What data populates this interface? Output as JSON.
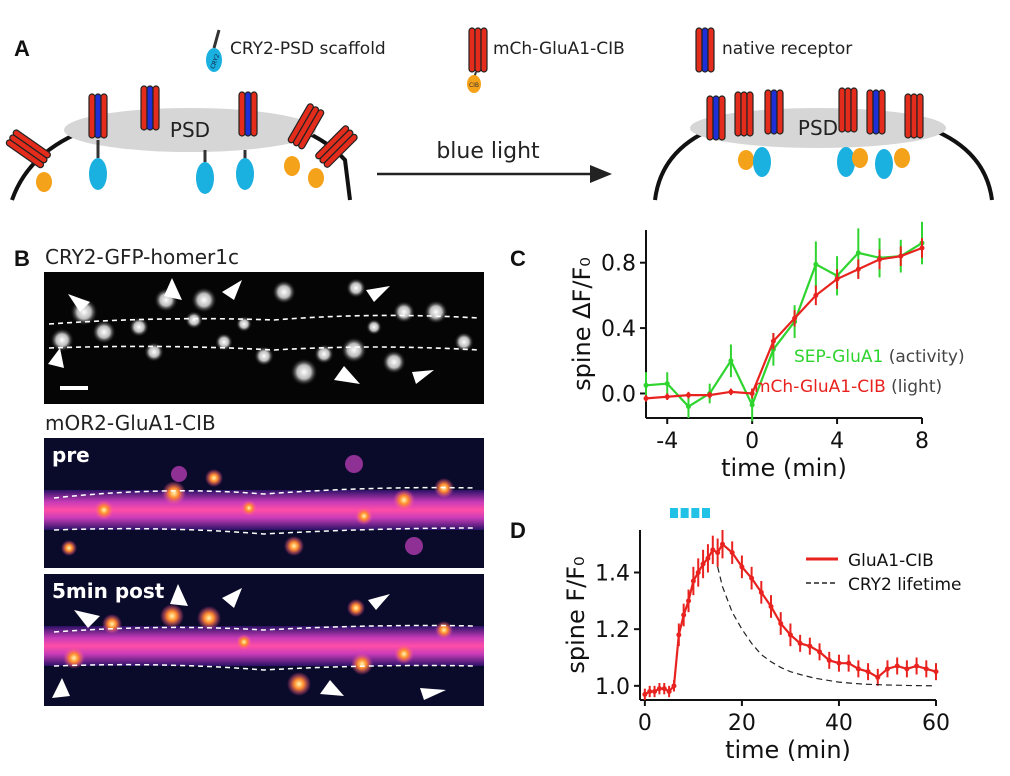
{
  "panels": {
    "A": {
      "letter": "A",
      "legend": {
        "scaffold": "CRY2-PSD scaffold",
        "mch": "mCh-GluA1-CIB",
        "native": "native receptor"
      },
      "psd_label": "PSD",
      "cry2_tag": "CRY2",
      "cib_tag": "CIB",
      "arrow_label": "blue light"
    },
    "B": {
      "letter": "B",
      "title_top": "CRY2-GFP-homer1c",
      "title_mid": "mOR2-GluA1-CIB",
      "pre_label": "pre",
      "post_label": "5min post"
    },
    "C": {
      "letter": "C"
    },
    "D": {
      "letter": "D"
    }
  },
  "colors": {
    "red": "#e8231f",
    "green": "#2fd42f",
    "blue_light": "#21c2e6",
    "receptor_red": "#e32c1b",
    "receptor_blue": "#1f2fd8",
    "cib_orange": "#f5a21b",
    "cry2_cyan": "#1ab0e0"
  },
  "chart_data": [
    {
      "id": "C",
      "type": "line",
      "xlabel": "time (min)",
      "ylabel": "spine ΔF/F₀",
      "xlim": [
        -5,
        8
      ],
      "ylim": [
        -0.15,
        1.0
      ],
      "xticks": [
        -4,
        0,
        4,
        8
      ],
      "yticks": [
        0.0,
        0.4,
        0.8
      ],
      "series": [
        {
          "name": "SEP-GluA1",
          "legend_suffix": "(activity)",
          "color": "#2fd42f",
          "x": [
            -5,
            -4,
            -3,
            -2,
            -1,
            0,
            1,
            2,
            3,
            4,
            5,
            6,
            7,
            8
          ],
          "y": [
            0.05,
            0.06,
            -0.08,
            0.0,
            0.2,
            -0.07,
            0.27,
            0.44,
            0.79,
            0.72,
            0.86,
            0.83,
            0.84,
            0.92
          ],
          "err": [
            0.08,
            0.07,
            0.07,
            0.06,
            0.1,
            0.1,
            0.1,
            0.1,
            0.14,
            0.12,
            0.15,
            0.12,
            0.1,
            0.13
          ]
        },
        {
          "name": "mCh-GluA1-CIB",
          "legend_suffix": "(light)",
          "color": "#e8231f",
          "x": [
            -5,
            -4,
            -3,
            -2,
            -1,
            0,
            1,
            2,
            3,
            4,
            5,
            6,
            7,
            8
          ],
          "y": [
            -0.03,
            -0.02,
            -0.01,
            -0.01,
            0.01,
            0.0,
            0.32,
            0.46,
            0.6,
            0.7,
            0.76,
            0.82,
            0.84,
            0.89
          ],
          "err": [
            0.02,
            0.02,
            0.02,
            0.02,
            0.02,
            0.03,
            0.05,
            0.05,
            0.06,
            0.06,
            0.06,
            0.06,
            0.06,
            0.06
          ]
        }
      ]
    },
    {
      "id": "D",
      "type": "line",
      "xlabel": "time (min)",
      "ylabel": "spine F/F₀",
      "xlim": [
        -1,
        60
      ],
      "ylim": [
        0.95,
        1.55
      ],
      "xticks": [
        0,
        20,
        40,
        60
      ],
      "yticks": [
        1.0,
        1.2,
        1.4
      ],
      "light_pulses": [
        6,
        8.2,
        10.4,
        12.6
      ],
      "series": [
        {
          "name": "GluA1-CIB",
          "color": "#e8231f",
          "x": [
            0,
            1,
            2,
            3,
            4,
            5,
            6,
            7,
            8,
            9,
            10,
            11,
            12,
            13,
            14,
            15,
            16,
            18,
            20,
            22,
            24,
            26,
            28,
            30,
            32,
            34,
            36,
            38,
            40,
            42,
            44,
            46,
            48,
            50,
            52,
            54,
            56,
            58,
            60
          ],
          "y": [
            0.97,
            0.98,
            0.98,
            0.99,
            0.99,
            0.98,
            1.0,
            1.18,
            1.25,
            1.3,
            1.37,
            1.4,
            1.43,
            1.45,
            1.48,
            1.47,
            1.5,
            1.47,
            1.42,
            1.38,
            1.33,
            1.28,
            1.22,
            1.18,
            1.15,
            1.14,
            1.12,
            1.09,
            1.08,
            1.08,
            1.06,
            1.05,
            1.03,
            1.06,
            1.07,
            1.06,
            1.07,
            1.06,
            1.05
          ],
          "err": [
            0.02,
            0.02,
            0.02,
            0.02,
            0.02,
            0.02,
            0.02,
            0.04,
            0.04,
            0.04,
            0.05,
            0.05,
            0.05,
            0.05,
            0.05,
            0.05,
            0.05,
            0.04,
            0.04,
            0.04,
            0.04,
            0.04,
            0.04,
            0.04,
            0.03,
            0.03,
            0.03,
            0.03,
            0.03,
            0.03,
            0.03,
            0.03,
            0.03,
            0.03,
            0.03,
            0.03,
            0.03,
            0.03,
            0.03
          ]
        },
        {
          "name": "CRY2 lifetime",
          "color": "#222222",
          "dashed": true,
          "x": [
            15,
            16,
            18,
            20,
            22,
            24,
            26,
            28,
            30,
            32,
            35,
            40,
            45,
            50,
            55,
            60
          ],
          "y": [
            1.42,
            1.35,
            1.26,
            1.2,
            1.15,
            1.11,
            1.085,
            1.065,
            1.05,
            1.04,
            1.027,
            1.013,
            1.006,
            1.003,
            1.001,
            1.0
          ]
        }
      ]
    }
  ]
}
